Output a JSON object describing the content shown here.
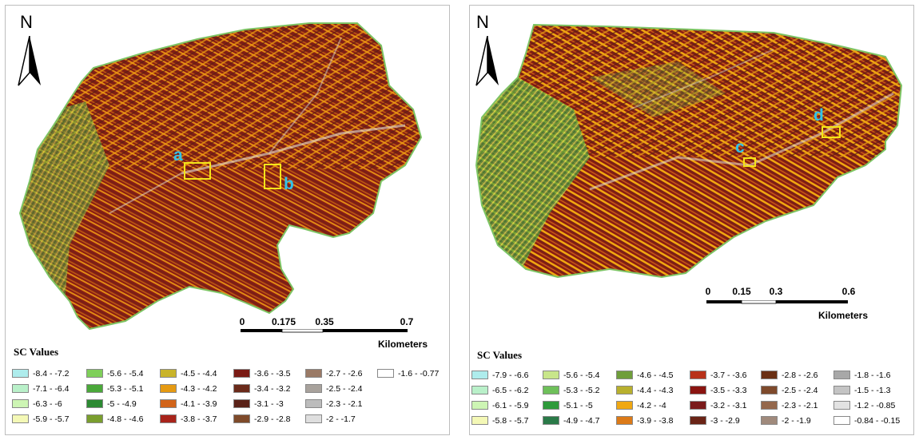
{
  "panels": [
    {
      "north_label": "N",
      "scale": {
        "ticks": [
          "0",
          "0.175",
          "0.35",
          "0.7"
        ],
        "unit": "Kilometers"
      },
      "markers": [
        "a",
        "b"
      ],
      "legend": {
        "title": "SC Values",
        "items": [
          {
            "label": "-8.4 - -7.2",
            "color": "#aeecec"
          },
          {
            "label": "-7.1 - -6.4",
            "color": "#b9f0c9"
          },
          {
            "label": "-6.3 - -6",
            "color": "#cdf5b4"
          },
          {
            "label": "-5.9 - -5.7",
            "color": "#f4f8b6"
          },
          {
            "label": "-5.6 - -5.4",
            "color": "#7fcf5a"
          },
          {
            "label": "-5.3 - -5.1",
            "color": "#4aa83a"
          },
          {
            "label": "-5 - -4.9",
            "color": "#2c8a32"
          },
          {
            "label": "-4.8 - -4.6",
            "color": "#7a9e2e"
          },
          {
            "label": "-4.5 - -4.4",
            "color": "#c9b42a"
          },
          {
            "label": "-4.3 - -4.2",
            "color": "#e59a12"
          },
          {
            "label": "-4.1 - -3.9",
            "color": "#d2641a"
          },
          {
            "label": "-3.8 - -3.7",
            "color": "#a8231a"
          },
          {
            "label": "-3.6 - -3.5",
            "color": "#7a1a14"
          },
          {
            "label": "-3.4 - -3.2",
            "color": "#6a2a1a"
          },
          {
            "label": "-3.1 - -3",
            "color": "#5a2218"
          },
          {
            "label": "-2.9 - -2.8",
            "color": "#7e4a2a"
          },
          {
            "label": "-2.7 - -2.6",
            "color": "#9a7a66"
          },
          {
            "label": "-2.5 - -2.4",
            "color": "#a8a29c"
          },
          {
            "label": "-2.3 - -2.1",
            "color": "#bcbcbc"
          },
          {
            "label": "-2 - -1.7",
            "color": "#dedede"
          },
          {
            "label": "-1.6 - -0.77",
            "color": "#ffffff"
          }
        ]
      }
    },
    {
      "north_label": "N",
      "scale": {
        "ticks": [
          "0",
          "0.15",
          "0.3",
          "0.6"
        ],
        "unit": "Kilometers"
      },
      "markers": [
        "c",
        "d"
      ],
      "legend": {
        "title": "SC Values",
        "items": [
          {
            "label": "-7.9 - -6.6",
            "color": "#aeecec"
          },
          {
            "label": "-6.5 - -6.2",
            "color": "#b9f0c9"
          },
          {
            "label": "-6.1 - -5.9",
            "color": "#cdf5b4"
          },
          {
            "label": "-5.8 - -5.7",
            "color": "#f4f8b6"
          },
          {
            "label": "-5.6 - -5.4",
            "color": "#c8e68a"
          },
          {
            "label": "-5.3 - -5.2",
            "color": "#6ec05a"
          },
          {
            "label": "-5.1 - -5",
            "color": "#2e9a3a"
          },
          {
            "label": "-4.9 - -4.7",
            "color": "#2a7a48"
          },
          {
            "label": "-4.6 - -4.5",
            "color": "#6f9e3a"
          },
          {
            "label": "-4.4 - -4.3",
            "color": "#b8b02e"
          },
          {
            "label": "-4.2 - -4",
            "color": "#f0a812"
          },
          {
            "label": "-3.9 - -3.8",
            "color": "#dc7a18"
          },
          {
            "label": "-3.7 - -3.6",
            "color": "#b8321a"
          },
          {
            "label": "-3.5 - -3.3",
            "color": "#8a1410"
          },
          {
            "label": "-3.2 - -3.1",
            "color": "#7a1a1a"
          },
          {
            "label": "-3 - -2.9",
            "color": "#6a2416"
          },
          {
            "label": "-2.8 - -2.6",
            "color": "#6a3014"
          },
          {
            "label": "-2.5 - -2.4",
            "color": "#7e4a2c"
          },
          {
            "label": "-2.3 - -2.1",
            "color": "#94684c"
          },
          {
            "label": "-2 - -1.9",
            "color": "#a08a7c"
          },
          {
            "label": "-1.8 - -1.6",
            "color": "#a8a8a8"
          },
          {
            "label": "-1.5 - -1.3",
            "color": "#c4c4c4"
          },
          {
            "label": "-1.2 - -0.85",
            "color": "#e2e2e2"
          },
          {
            "label": "-0.84 - -0.15",
            "color": "#ffffff"
          }
        ]
      }
    }
  ]
}
